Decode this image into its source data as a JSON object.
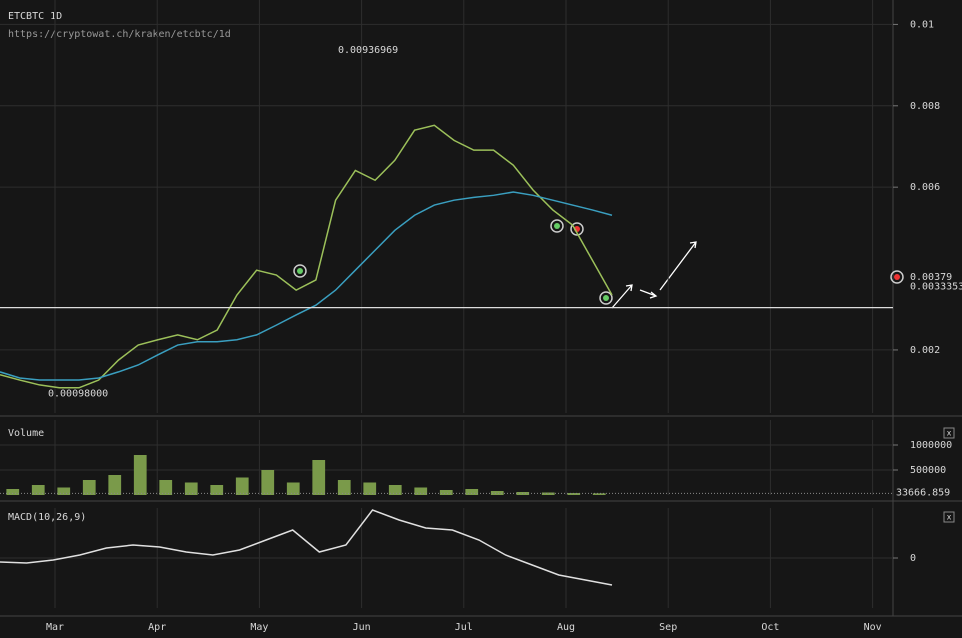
{
  "chart_data": [
    {
      "type": "line",
      "title": "ETCBTC 1D",
      "subtitle": "https://cryptowat.ch/kraken/etcbtc/1d",
      "ylim": [
        0.00045,
        0.0106
      ],
      "yticks": [
        0.01,
        0.008,
        0.006,
        0.002
      ],
      "grid": true,
      "series": [
        {
          "name": "Close",
          "color": "#9cc05a",
          "values": [
            0.00139,
            0.00126,
            0.00114,
            0.00107,
            0.00107,
            0.00126,
            0.00175,
            0.00212,
            0.00225,
            0.00237,
            0.00225,
            0.00249,
            0.00335,
            0.00396,
            0.00384,
            0.00347,
            0.00372,
            0.00568,
            0.00641,
            0.00617,
            0.00666,
            0.0074,
            0.00752,
            0.00715,
            0.00691,
            0.00691,
            0.00654,
            0.00593,
            0.00544,
            0.00507,
            0.00421,
            0.00335
          ]
        },
        {
          "name": "MA",
          "color": "#3a9fc0",
          "values": [
            0.00146,
            0.00131,
            0.00126,
            0.00126,
            0.00126,
            0.00131,
            0.00146,
            0.00163,
            0.00188,
            0.00212,
            0.0022,
            0.0022,
            0.00225,
            0.00237,
            0.00261,
            0.00286,
            0.0031,
            0.00347,
            0.00396,
            0.00445,
            0.00494,
            0.00531,
            0.00556,
            0.00568,
            0.00575,
            0.0058,
            0.00588,
            0.0058,
            0.00568,
            0.00556,
            0.00544,
            0.00531
          ]
        }
      ],
      "hlines": [
        0.0033353
      ],
      "annotations": [
        {
          "value": 0.00936969,
          "label": "0.00936969"
        },
        {
          "value": 0.00098,
          "label": "0.00098000"
        }
      ],
      "price_labels": [
        {
          "value": 0.00379,
          "label": "0.00379"
        },
        {
          "value": 0.0033353,
          "label": "0.0033353"
        }
      ]
    },
    {
      "type": "bar",
      "title": "Volume",
      "close": "x",
      "ylim": [
        0,
        1500000
      ],
      "yticks": [
        1000000,
        500000
      ],
      "last_value": 33666.859,
      "color": "#7a9a4a",
      "values": [
        120000,
        200000,
        150000,
        300000,
        400000,
        800000,
        300000,
        250000,
        200000,
        350000,
        500000,
        250000,
        700000,
        300000,
        250000,
        200000,
        150000,
        100000,
        120000,
        80000,
        60000,
        50000,
        40000,
        33666.859
      ]
    },
    {
      "type": "line",
      "title": "MACD(10,26,9)",
      "close": "x",
      "ylim": [
        -0.0005,
        0.0005
      ],
      "yticks": [
        0
      ],
      "series": [
        {
          "name": "MACD",
          "color": "#e0e0e0",
          "values": [
            -4e-05,
            -5e-05,
            -2e-05,
            3e-05,
            0.0001,
            0.00013,
            0.00011,
            6e-05,
            3e-05,
            8e-05,
            0.00018,
            0.00028,
            6e-05,
            0.00013,
            0.00048,
            0.00038,
            0.0003,
            0.00028,
            0.00018,
            3e-05,
            -7e-05,
            -0.00017,
            -0.00022,
            -0.00027
          ]
        }
      ]
    }
  ],
  "time_axis": {
    "labels": [
      "Mar",
      "Apr",
      "May",
      "Jun",
      "Jul",
      "Aug",
      "Sep",
      "Oct",
      "Nov"
    ]
  }
}
